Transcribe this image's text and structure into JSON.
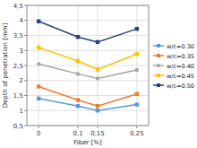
{
  "chart_data": {
    "type": "line",
    "x": [
      0,
      0.1,
      0.15,
      0.25
    ],
    "series": [
      {
        "name": "w/c=0.30",
        "values": [
          1.4,
          1.15,
          1.0,
          1.2
        ],
        "color": "#5b9bd5",
        "marker": "square"
      },
      {
        "name": "w/c=0.35",
        "values": [
          1.8,
          1.35,
          1.15,
          1.55
        ],
        "color": "#ed7d31",
        "marker": "square"
      },
      {
        "name": "w/c=0.40",
        "values": [
          2.55,
          2.22,
          2.07,
          2.35
        ],
        "color": "#a5a5a5",
        "marker": "circle"
      },
      {
        "name": "w/c=0.45",
        "values": [
          3.1,
          2.65,
          2.37,
          2.88
        ],
        "color": "#ffc000",
        "marker": "square"
      },
      {
        "name": "w/c=0.50",
        "values": [
          3.97,
          3.45,
          3.28,
          3.72
        ],
        "color": "#264478",
        "marker": "square"
      }
    ],
    "xlabel": "Fiber [%]",
    "ylabel": "Depth of penetration [mm]",
    "xlim": [
      -0.03,
      0.28
    ],
    "ylim": [
      0.5,
      4.5
    ],
    "xticks": [
      0,
      {
        "value": 0.1,
        "label": "0,1"
      },
      {
        "value": 0.15,
        "label": "0,15"
      },
      {
        "value": 0.25,
        "label": "0,25"
      }
    ],
    "yticks": [
      {
        "value": 0.5,
        "label": "0,5"
      },
      1,
      {
        "value": 1.5,
        "label": "1,5"
      },
      2,
      {
        "value": 2.5,
        "label": "2,5"
      },
      3,
      {
        "value": 3.5,
        "label": "3,5"
      },
      4,
      {
        "value": 4.5,
        "label": "4,5"
      }
    ],
    "grid": true,
    "legend": "right"
  }
}
